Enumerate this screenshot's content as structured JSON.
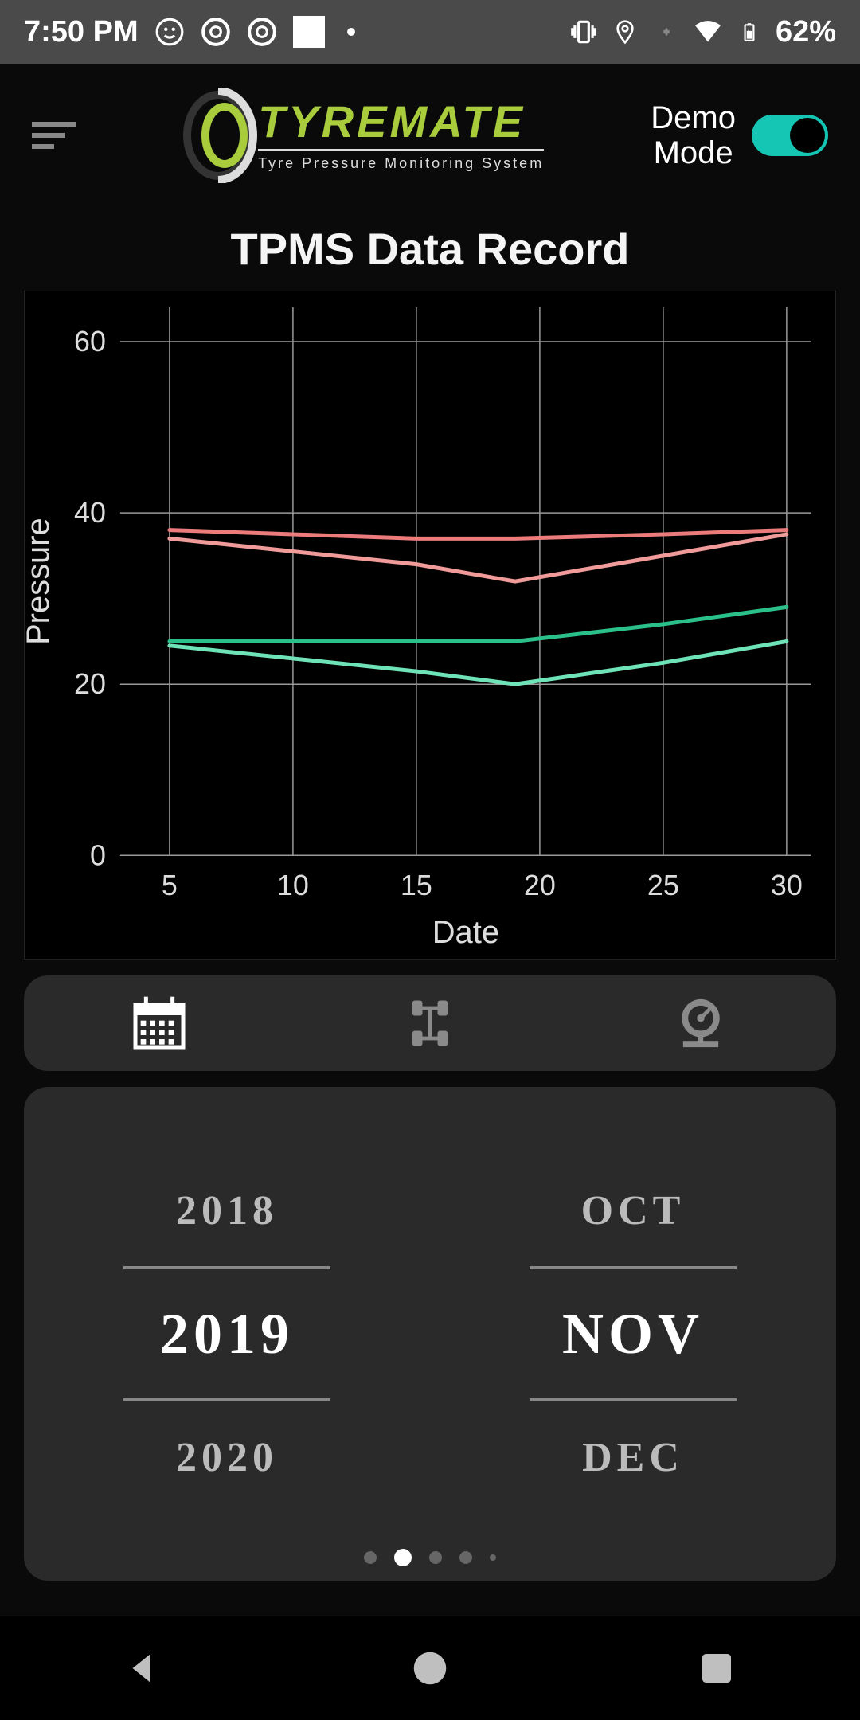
{
  "status": {
    "time": "7:50 PM",
    "battery_pct": "62%"
  },
  "header": {
    "logo_main": "TYREMATE",
    "logo_sub": "Tyre Pressure Monitoring System",
    "mode_label_line1": "Demo",
    "mode_label_line2": "Mode",
    "toggle_on": true,
    "toggle_color": "#16c6b5"
  },
  "title": "TPMS Data Record",
  "chart": {
    "type": "line",
    "xlabel": "Date",
    "ylabel": "Pressure",
    "xlim": [
      3,
      31
    ],
    "ylim": [
      0,
      64
    ],
    "xticks": [
      5,
      10,
      15,
      20,
      25,
      30
    ],
    "yticks": [
      0,
      20,
      40,
      60
    ],
    "background_color": "#000000",
    "grid_color": "#9a9a9a",
    "axis_font_size": 36,
    "label_font_size": 40,
    "line_width": 5,
    "series": [
      {
        "color": "#ec7b7b",
        "points": [
          [
            5,
            38
          ],
          [
            10,
            37.5
          ],
          [
            15,
            37
          ],
          [
            19,
            37
          ],
          [
            25,
            37.5
          ],
          [
            30,
            38
          ]
        ]
      },
      {
        "color": "#f09a9a",
        "points": [
          [
            5,
            37
          ],
          [
            10,
            35.5
          ],
          [
            15,
            34
          ],
          [
            19,
            32
          ],
          [
            25,
            35
          ],
          [
            30,
            37.5
          ]
        ]
      },
      {
        "color": "#2bbf8a",
        "points": [
          [
            5,
            25
          ],
          [
            10,
            25
          ],
          [
            15,
            25
          ],
          [
            19,
            25
          ],
          [
            25,
            27
          ],
          [
            30,
            29
          ]
        ]
      },
      {
        "color": "#6fe3b8",
        "points": [
          [
            5,
            24.5
          ],
          [
            10,
            23
          ],
          [
            15,
            21.5
          ],
          [
            19,
            20
          ],
          [
            25,
            22.5
          ],
          [
            30,
            25
          ]
        ]
      }
    ]
  },
  "tabs": {
    "active_index": 0,
    "active_color": "#ffffff",
    "inactive_color": "#8a8a8a"
  },
  "picker": {
    "years": {
      "prev": "2018",
      "current": "2019",
      "next": "2020"
    },
    "months": {
      "prev": "OCT",
      "current": "NOV",
      "next": "DEC"
    },
    "dots_total": 5,
    "dots_active_index": 1
  }
}
